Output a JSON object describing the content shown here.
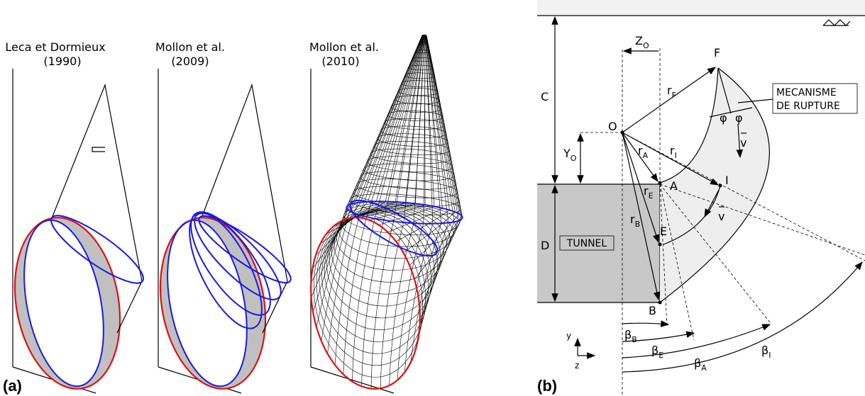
{
  "panel_a": {
    "label": "(a)",
    "sketches": [
      {
        "author": "Leca et Dormieux",
        "year": "(1990)"
      },
      {
        "author": "Mollon et al.",
        "year": "(2009)"
      },
      {
        "author": "Mollon et al.",
        "year": "(2010)"
      }
    ]
  },
  "panel_b": {
    "label": "(b)",
    "points": {
      "O": "O",
      "F": "F",
      "A": "A",
      "I": "I",
      "E": "E",
      "B": "B"
    },
    "dimensions": {
      "C": "C",
      "D": "D"
    },
    "distances": {
      "Z_O": {
        "text": "Z",
        "sub": "O"
      },
      "Y_O": {
        "text": "Y",
        "sub": "O"
      }
    },
    "radii": {
      "r_F": {
        "text": "r",
        "sub": "F"
      },
      "r_A": {
        "text": "r",
        "sub": "A"
      },
      "r_I": {
        "text": "r",
        "sub": "I"
      },
      "r_E": {
        "text": "r",
        "sub": "E"
      },
      "r_B": {
        "text": "r",
        "sub": "B"
      }
    },
    "angles": {
      "beta_B": {
        "text": "β",
        "sub": "B"
      },
      "beta_E": {
        "text": "β",
        "sub": "E"
      },
      "beta_A": {
        "text": "β",
        "sub": "A"
      },
      "beta_I": {
        "text": "β",
        "sub": "I"
      }
    },
    "friction": [
      "φ",
      "φ"
    ],
    "velocity": [
      "v",
      "v"
    ],
    "tunnel": "TUNNEL",
    "mechanism": [
      "MECANISME",
      "DE RUPTURE"
    ],
    "axes": {
      "y": "y",
      "z": "z"
    }
  }
}
